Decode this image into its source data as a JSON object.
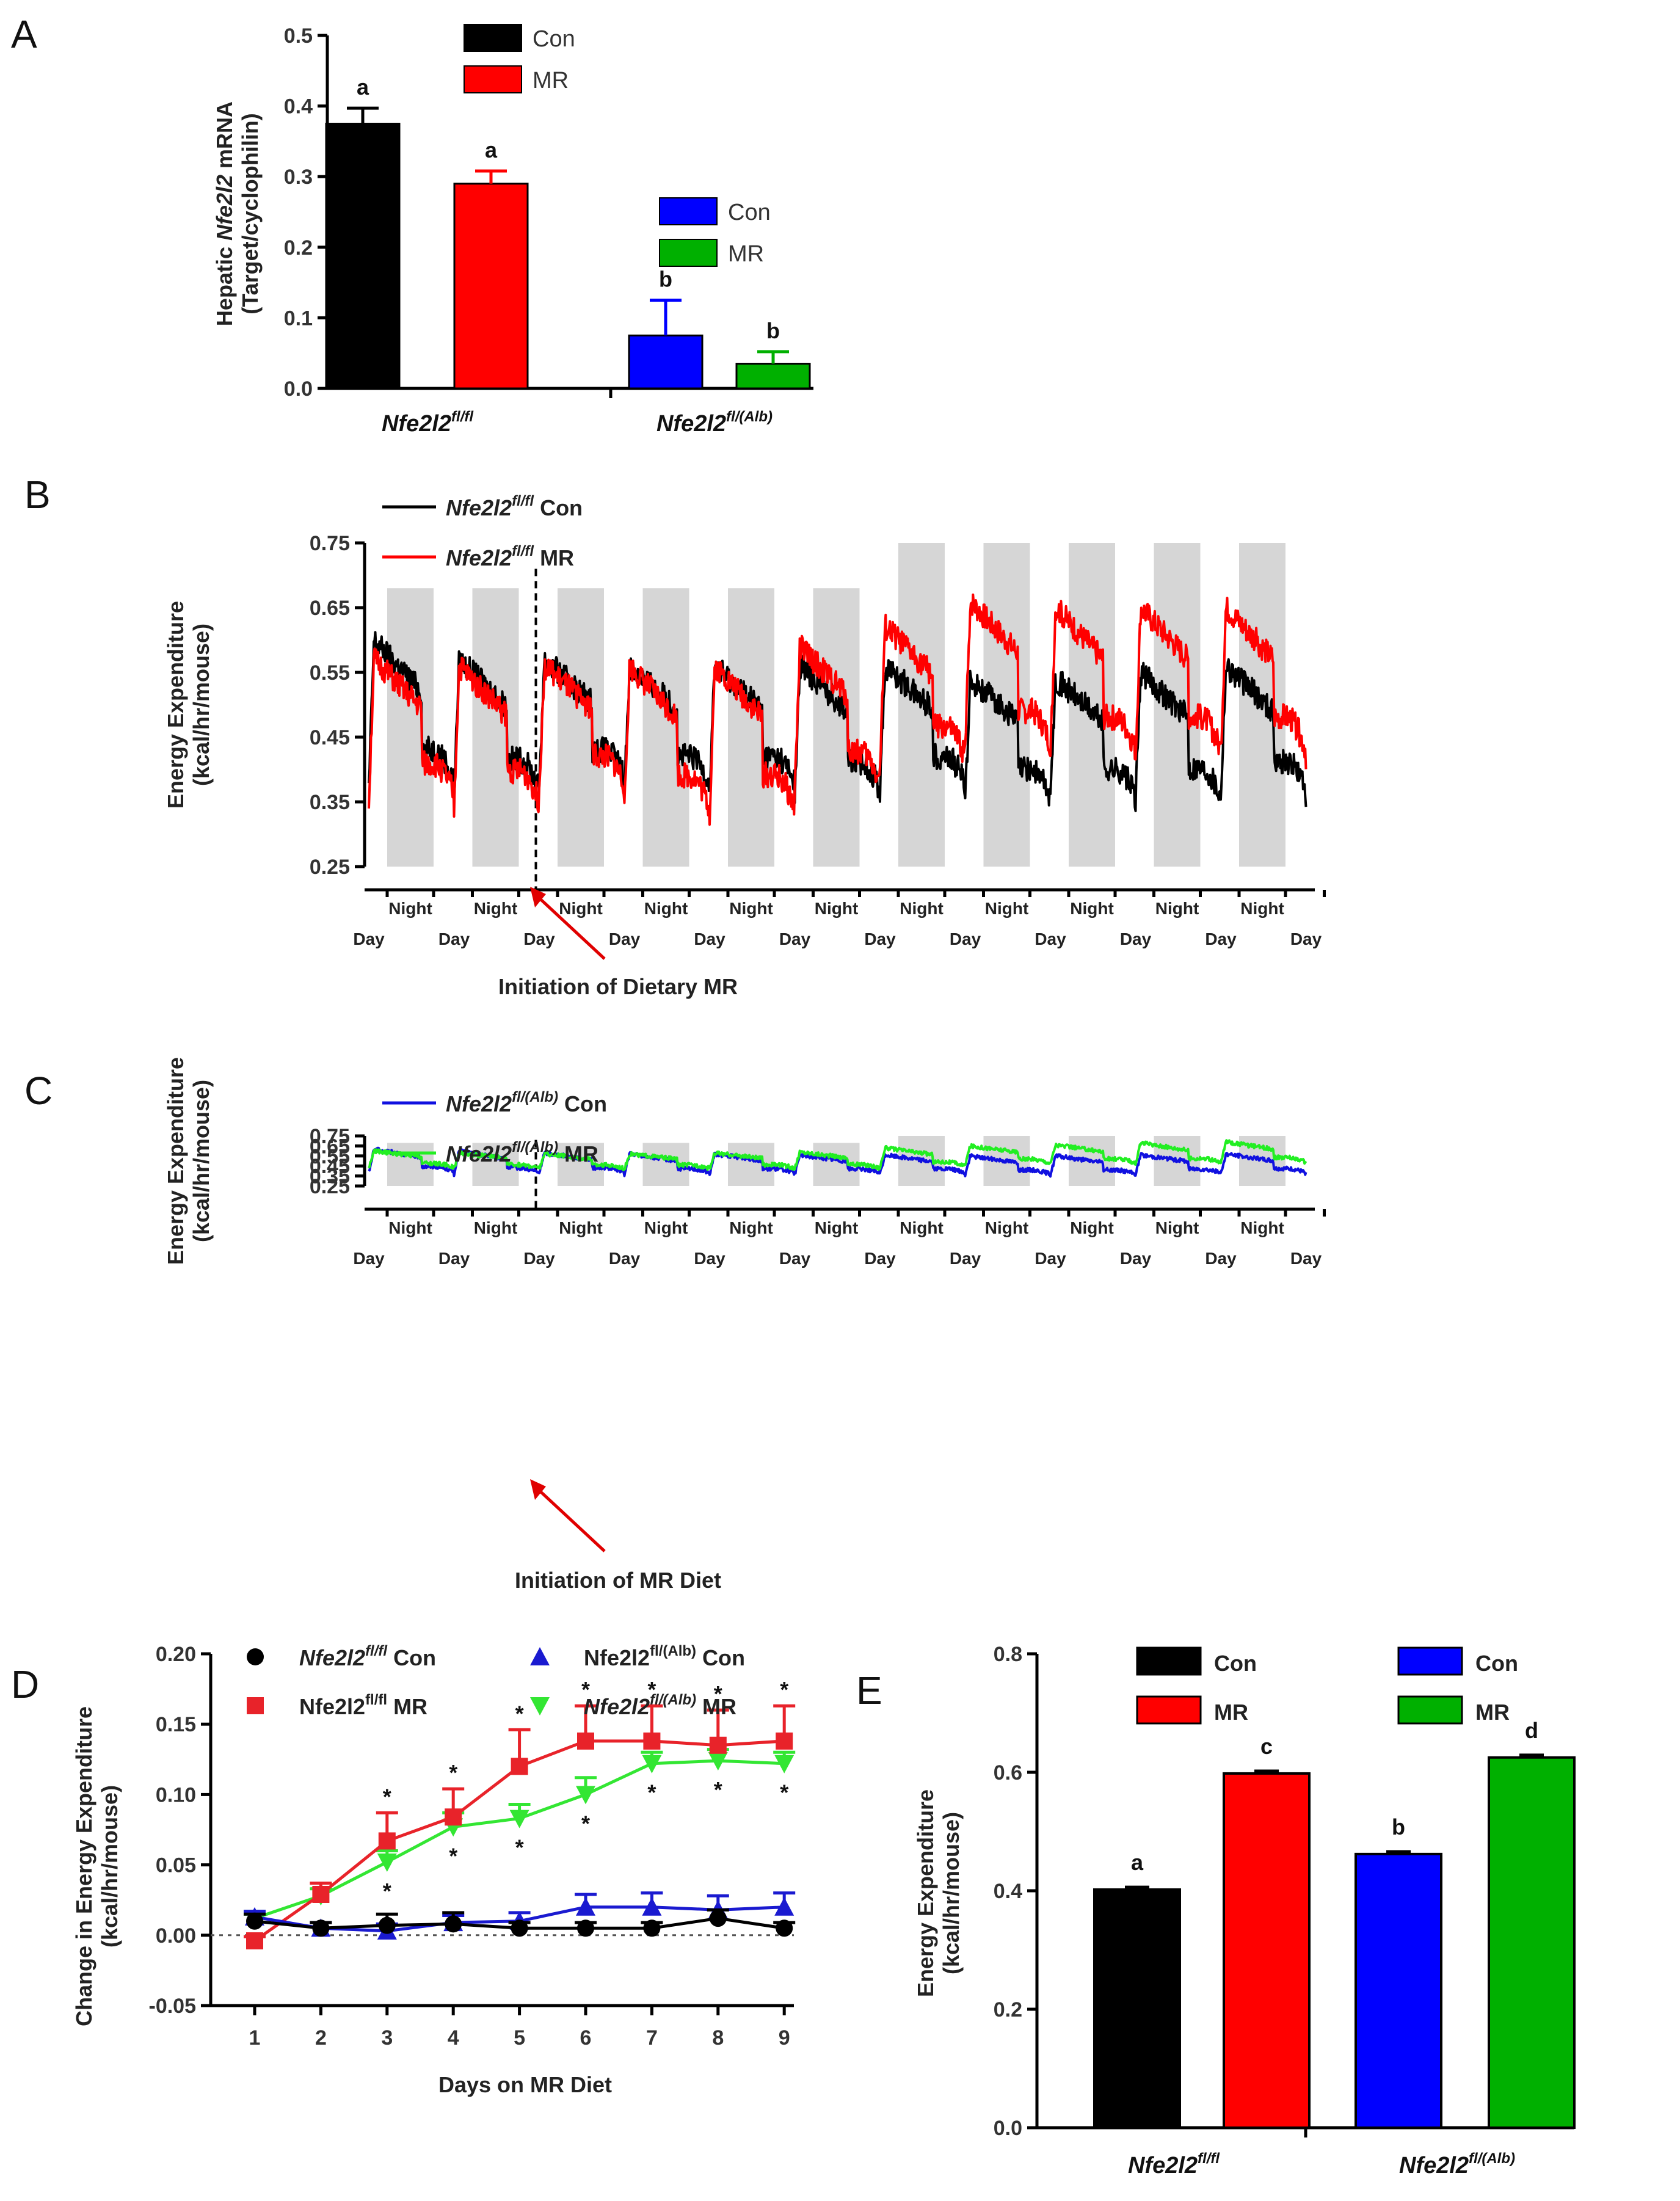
{
  "chart_data": [
    {
      "panel": "A",
      "type": "bar",
      "ylabel_line1": "Hepatic ",
      "ylabel_gene": "Nfe2l2",
      "ylabel_line1_end": " mRNA",
      "ylabel_line2": "(Target/cyclophilin)",
      "ylim": [
        0,
        0.5
      ],
      "yticks": [
        "0.0",
        "0.1",
        "0.2",
        "0.3",
        "0.4",
        "0.5"
      ],
      "groups": [
        {
          "base": "Nfe2l2",
          "sup": "fl/fl"
        },
        {
          "base": "Nfe2l2",
          "sup": "fl/(Alb)"
        }
      ],
      "bars": [
        {
          "label": "Con",
          "value": 0.375,
          "err": 0.022,
          "color": "#000000",
          "sig": "a"
        },
        {
          "label": "MR",
          "value": 0.29,
          "err": 0.018,
          "color": "#ff0000",
          "sig": "a"
        },
        {
          "label": "Con",
          "value": 0.075,
          "err": 0.05,
          "color": "#0000ff",
          "sig": "b"
        },
        {
          "label": "MR",
          "value": 0.035,
          "err": 0.017,
          "color": "#00b000",
          "sig": "b"
        }
      ],
      "legends": [
        [
          "Con",
          "MR"
        ],
        [
          "Con",
          "MR"
        ]
      ]
    },
    {
      "panel": "B",
      "type": "line",
      "ylabel_line1": "Energy Expenditure",
      "ylabel_line2": "(kcal/hr/mouse)",
      "ylim": [
        0.25,
        0.75
      ],
      "yticks": [
        "0.25",
        "0.35",
        "0.45",
        "0.55",
        "0.65",
        "0.75"
      ],
      "night_label": "Night",
      "day_label": "Day",
      "n_cycles": 11,
      "series": [
        {
          "gene": "Nfe2l2",
          "sup": "fl/fl",
          "name": "Con",
          "color": "#000000",
          "night_peak": [
            0.6,
            0.57,
            0.57,
            0.56,
            0.56,
            0.56,
            0.56,
            0.54,
            0.54,
            0.55,
            0.56
          ],
          "day_trough": [
            0.37,
            0.36,
            0.38,
            0.37,
            0.37,
            0.36,
            0.37,
            0.35,
            0.35,
            0.35,
            0.36
          ]
        },
        {
          "gene": "Nfe2l2",
          "sup": "fl/fl",
          "name": "MR",
          "color": "#ff0000",
          "night_peak": [
            0.57,
            0.56,
            0.56,
            0.56,
            0.56,
            0.59,
            0.62,
            0.66,
            0.65,
            0.65,
            0.65
          ],
          "day_trough": [
            0.35,
            0.34,
            0.37,
            0.33,
            0.33,
            0.37,
            0.41,
            0.43,
            0.42,
            0.42,
            0.42
          ]
        }
      ],
      "annotation": "Initiation of Dietary MR"
    },
    {
      "panel": "C",
      "type": "line",
      "ylabel_line1": "Energy Expenditure",
      "ylabel_line2": "(kcal/hr/mouse)",
      "ylim": [
        0.25,
        0.75
      ],
      "yticks": [
        "0.25",
        "0.35",
        "0.45",
        "0.55",
        "0.65",
        "0.75"
      ],
      "night_label": "Night",
      "day_label": "Day",
      "n_cycles": 11,
      "series": [
        {
          "gene": "Nfe2l2",
          "sup": "fl/(Alb)",
          "name": "Con",
          "color": "#1010e0",
          "night_peak": [
            0.62,
            0.6,
            0.58,
            0.57,
            0.57,
            0.56,
            0.56,
            0.55,
            0.55,
            0.56,
            0.57
          ],
          "day_trough": [
            0.38,
            0.37,
            0.38,
            0.37,
            0.37,
            0.37,
            0.37,
            0.36,
            0.36,
            0.37,
            0.37
          ]
        },
        {
          "gene": "Nfe2l2",
          "sup": "fl/(Alb)",
          "name": "MR",
          "color": "#22ee22",
          "night_peak": [
            0.6,
            0.58,
            0.57,
            0.57,
            0.58,
            0.59,
            0.63,
            0.65,
            0.66,
            0.68,
            0.69
          ],
          "day_trough": [
            0.43,
            0.42,
            0.42,
            0.42,
            0.42,
            0.42,
            0.44,
            0.47,
            0.47,
            0.47,
            0.48
          ]
        }
      ],
      "annotation": "Initiation of MR Diet"
    },
    {
      "panel": "D",
      "type": "line",
      "ylabel_line1": "Change in Energy Expenditure",
      "ylabel_line2": "(kcal/hr/mouse)",
      "xlabel": "Days on MR Diet",
      "ylim": [
        -0.05,
        0.2
      ],
      "yticks": [
        "-0.05",
        "0.00",
        "0.05",
        "0.10",
        "0.15",
        "0.20"
      ],
      "x": [
        1,
        2,
        3,
        4,
        5,
        6,
        7,
        8,
        9
      ],
      "xticks": [
        "1",
        "2",
        "3",
        "4",
        "5",
        "6",
        "7",
        "8",
        "9"
      ],
      "sig_mark": "*",
      "series": [
        {
          "gene": "Nfe2l2",
          "sup": "fl/fl",
          "name": "Con",
          "gene_italic": true,
          "color": "#000000",
          "marker": "circle",
          "values": [
            0.01,
            0.005,
            0.007,
            0.008,
            0.005,
            0.005,
            0.005,
            0.012,
            0.005
          ],
          "err": [
            0.005,
            0.004,
            0.008,
            0.008,
            0.004,
            0.004,
            0.004,
            0.006,
            0.004
          ]
        },
        {
          "gene": "Nfe2l2",
          "sup": "fl/fl",
          "name": "MR",
          "gene_italic": false,
          "color": "#e8232a",
          "marker": "square",
          "values": [
            -0.004,
            0.029,
            0.067,
            0.084,
            0.12,
            0.138,
            0.138,
            0.135,
            0.138
          ],
          "err": [
            0.003,
            0.008,
            0.02,
            0.02,
            0.026,
            0.025,
            0.025,
            0.025,
            0.025
          ],
          "sig_above": [
            false,
            false,
            true,
            true,
            true,
            true,
            true,
            true,
            true
          ]
        },
        {
          "gene": "Nfe2l2",
          "sup": "fl/(Alb)",
          "name": "Con",
          "gene_italic": false,
          "color": "#1a1ad0",
          "marker": "triangle-up",
          "values": [
            0.013,
            0.005,
            0.003,
            0.009,
            0.01,
            0.02,
            0.02,
            0.018,
            0.02
          ],
          "err": [
            0.004,
            0.004,
            0.005,
            0.005,
            0.006,
            0.009,
            0.01,
            0.01,
            0.01
          ]
        },
        {
          "gene": "Nfe2l2",
          "sup": "fl/(Alb)",
          "name": "MR",
          "gene_italic": true,
          "color": "#33e633",
          "marker": "triangle-down",
          "values": [
            0.012,
            0.028,
            0.052,
            0.077,
            0.083,
            0.1,
            0.122,
            0.124,
            0.122
          ],
          "err": [
            0.003,
            0.005,
            0.008,
            0.01,
            0.01,
            0.012,
            0.008,
            0.008,
            0.008
          ],
          "sig_below": [
            false,
            false,
            true,
            true,
            true,
            true,
            true,
            true,
            true
          ]
        }
      ]
    },
    {
      "panel": "E",
      "type": "bar",
      "ylabel_line1": "Energy Expenditure",
      "ylabel_line2": "(kcal/hr/mouse)",
      "ylim": [
        0,
        0.8
      ],
      "yticks": [
        "0.0",
        "0.2",
        "0.4",
        "0.6",
        "0.8"
      ],
      "groups": [
        {
          "base": "Nfe2l2",
          "sup": "fl/fl"
        },
        {
          "base": "Nfe2l2",
          "sup": "fl/(Alb)"
        }
      ],
      "bars": [
        {
          "label": "Con",
          "value": 0.402,
          "err": 0.004,
          "color": "#000000",
          "sig": "a"
        },
        {
          "label": "MR",
          "value": 0.598,
          "err": 0.004,
          "color": "#ff0000",
          "sig": "c"
        },
        {
          "label": "Con",
          "value": 0.462,
          "err": 0.004,
          "color": "#0000ff",
          "sig": "b"
        },
        {
          "label": "MR",
          "value": 0.625,
          "err": 0.004,
          "color": "#00b000",
          "sig": "d"
        }
      ],
      "legends": [
        [
          "Con",
          "MR"
        ],
        [
          "Con",
          "MR"
        ]
      ]
    }
  ]
}
